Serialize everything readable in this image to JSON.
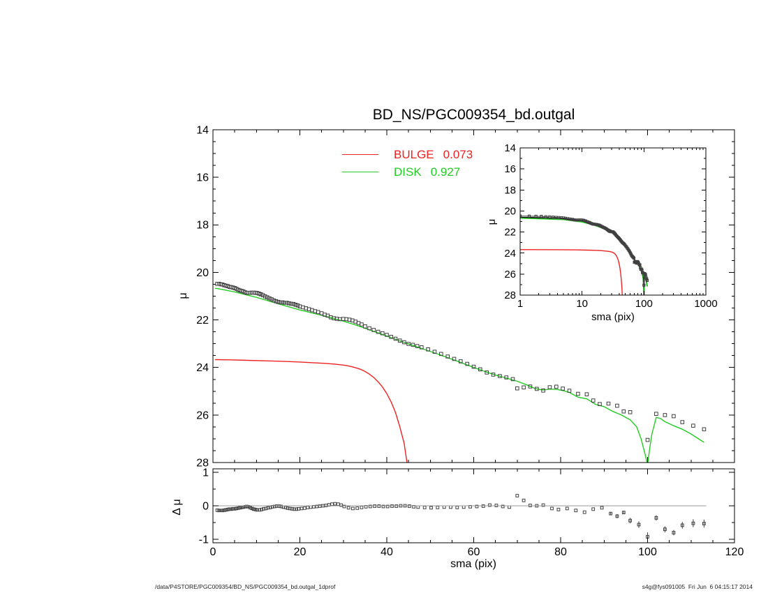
{
  "page": {
    "title": "BD_NS/PGC009354_bd.outgal",
    "footer_left": "/data/P4STORE/PGC009354/BD_NS/PGC009354_bd.outgal_1dprof",
    "footer_right": "s4g@fys091005  Fri Jun  6 04:15:17 2014"
  },
  "legend": {
    "entries": [
      {
        "label": "BULGE",
        "value": "0.073",
        "color": "#ee2222"
      },
      {
        "label": "DISK",
        "value": "0.927",
        "color": "#22cc22"
      }
    ]
  },
  "colors": {
    "bulge": "#ee2222",
    "disk": "#22cc22",
    "total": "#000000",
    "data": "#404040",
    "zero_line": "#999999",
    "axis": "#000000"
  },
  "chart_data": [
    {
      "id": "main",
      "type": "scatter+line",
      "title": "BD_NS/PGC009354_bd.outgal",
      "xlabel": "",
      "ylabel": "μ",
      "xscale": "linear",
      "xlim": [
        0,
        120
      ],
      "ylim_top": 14,
      "ylim_bottom": 28,
      "x_major_ticks": [
        0,
        20,
        40,
        60,
        80,
        100,
        120
      ],
      "x_minor_step": 5,
      "x_tick_labels": false,
      "y_major_ticks": [
        14,
        16,
        18,
        20,
        22,
        24,
        26,
        28
      ],
      "y_minor_step": 0.5,
      "y_tick_labels": true,
      "grid": false,
      "errorbars": false,
      "series_draw": [
        "bulge",
        "disk",
        "data"
      ],
      "legend_position": "top-center-left"
    },
    {
      "id": "inset",
      "type": "scatter+line",
      "title": "",
      "xlabel": "sma (pix)",
      "ylabel": "μ",
      "xscale": "log",
      "xlim": [
        1,
        1000
      ],
      "ylim_top": 14,
      "ylim_bottom": 28,
      "x_major_ticks": [
        1,
        10,
        100,
        1000
      ],
      "x_tick_labels": true,
      "y_major_ticks": [
        14,
        16,
        18,
        20,
        22,
        24,
        26,
        28
      ],
      "y_minor_step": 1,
      "y_tick_labels": true,
      "grid": false,
      "errorbars": true,
      "series_draw": [
        "bulge",
        "total",
        "disk",
        "dataline",
        "data"
      ]
    },
    {
      "id": "resid",
      "type": "scatter",
      "title": "",
      "xlabel": "sma (pix)",
      "ylabel": "Δ μ",
      "xscale": "linear",
      "xlim": [
        0,
        120
      ],
      "ylim_top": 1.1,
      "ylim_bottom": -1.1,
      "x_major_ticks": [
        0,
        20,
        40,
        60,
        80,
        100,
        120
      ],
      "x_minor_step": 5,
      "x_tick_labels": true,
      "y_major_ticks": [
        1,
        0,
        -1
      ],
      "y_minor_step": 0.5,
      "y_tick_labels": true,
      "zero_line": true,
      "zero_line_range": [
        0,
        113.5
      ],
      "grid": false,
      "errorbars": true,
      "series_draw": [
        "residuals"
      ]
    }
  ],
  "series": {
    "bulge": {
      "name": "BULGE model",
      "kind": "line",
      "color_key": "bulge",
      "points": [
        [
          0.5,
          23.67
        ],
        [
          4,
          23.68
        ],
        [
          8,
          23.7
        ],
        [
          12,
          23.72
        ],
        [
          16,
          23.74
        ],
        [
          20,
          23.77
        ],
        [
          23,
          23.8
        ],
        [
          26,
          23.83
        ],
        [
          28,
          23.86
        ],
        [
          30,
          23.9
        ],
        [
          31,
          23.93
        ],
        [
          32,
          23.97
        ],
        [
          33,
          24.02
        ],
        [
          34,
          24.08
        ],
        [
          35,
          24.17
        ],
        [
          36,
          24.28
        ],
        [
          37,
          24.42
        ],
        [
          38,
          24.6
        ],
        [
          39,
          24.82
        ],
        [
          40,
          25.1
        ],
        [
          41,
          25.45
        ],
        [
          42,
          25.9
        ],
        [
          43,
          26.5
        ],
        [
          44,
          27.2
        ],
        [
          44.8,
          28.2
        ]
      ]
    },
    "disk": {
      "name": "DISK model",
      "kind": "line",
      "color_key": "disk",
      "points": [
        [
          0.5,
          20.67
        ],
        [
          1,
          20.68
        ],
        [
          5,
          20.82
        ],
        [
          10,
          21.05
        ],
        [
          15,
          21.32
        ],
        [
          20,
          21.58
        ],
        [
          25,
          21.8
        ],
        [
          28,
          21.95
        ],
        [
          30,
          22.05
        ],
        [
          33,
          22.22
        ],
        [
          36,
          22.42
        ],
        [
          40,
          22.68
        ],
        [
          44,
          22.95
        ],
        [
          48,
          23.2
        ],
        [
          52,
          23.45
        ],
        [
          56,
          23.72
        ],
        [
          60,
          24.0
        ],
        [
          63,
          24.2
        ],
        [
          65,
          24.32
        ],
        [
          67,
          24.42
        ],
        [
          70,
          24.58
        ],
        [
          72,
          24.72
        ],
        [
          74,
          24.88
        ],
        [
          75,
          24.92
        ],
        [
          76,
          24.95
        ],
        [
          77.5,
          24.91
        ],
        [
          79,
          24.92
        ],
        [
          80.5,
          24.97
        ],
        [
          82,
          25.05
        ],
        [
          84,
          25.25
        ],
        [
          86,
          25.32
        ],
        [
          88,
          25.55
        ],
        [
          90,
          25.65
        ],
        [
          92,
          25.85
        ],
        [
          94,
          26.0
        ],
        [
          96,
          26.2
        ],
        [
          97.5,
          26.5
        ],
        [
          98.5,
          27.0
        ],
        [
          99.5,
          27.7
        ],
        [
          100,
          28.1
        ],
        [
          100.5,
          27.4
        ],
        [
          101,
          26.8
        ],
        [
          102,
          26.1
        ],
        [
          103,
          26.15
        ],
        [
          104,
          26.28
        ],
        [
          106,
          26.45
        ],
        [
          108,
          26.6
        ],
        [
          110,
          26.8
        ],
        [
          113,
          27.15
        ]
      ]
    },
    "total": {
      "name": "Total model (bulge+disk, flux sum)",
      "kind": "line",
      "color_key": "total",
      "computed": "flux_sum(bulge,disk)"
    },
    "data": {
      "name": "Observed profile",
      "kind": "scatter",
      "color_key": "data",
      "points": [
        [
          1.0,
          20.48
        ],
        [
          1.4,
          20.48
        ],
        [
          1.8,
          20.5
        ],
        [
          2.2,
          20.51
        ],
        [
          2.6,
          20.54
        ],
        [
          3.0,
          20.56
        ],
        [
          3.4,
          20.58
        ],
        [
          3.8,
          20.61
        ],
        [
          4.2,
          20.62
        ],
        [
          4.6,
          20.64
        ],
        [
          5.0,
          20.66
        ],
        [
          5.4,
          20.69
        ],
        [
          5.8,
          20.73
        ],
        [
          6.2,
          20.76
        ],
        [
          6.6,
          20.78
        ],
        [
          7.0,
          20.8
        ],
        [
          7.4,
          20.84
        ],
        [
          7.8,
          20.86
        ],
        [
          8.2,
          20.86
        ],
        [
          8.6,
          20.86
        ],
        [
          9.0,
          20.85
        ],
        [
          9.4,
          20.85
        ],
        [
          9.8,
          20.86
        ],
        [
          10.2,
          20.87
        ],
        [
          10.6,
          20.89
        ],
        [
          11.0,
          20.92
        ],
        [
          11.5,
          20.96
        ],
        [
          12.0,
          21.01
        ],
        [
          12.5,
          21.05
        ],
        [
          13.0,
          21.09
        ],
        [
          13.5,
          21.13
        ],
        [
          14.0,
          21.18
        ],
        [
          14.5,
          21.21
        ],
        [
          15.0,
          21.24
        ],
        [
          15.5,
          21.26
        ],
        [
          16.0,
          21.26
        ],
        [
          16.5,
          21.28
        ],
        [
          17.0,
          21.28
        ],
        [
          17.5,
          21.3
        ],
        [
          18.0,
          21.32
        ],
        [
          18.5,
          21.33
        ],
        [
          19.0,
          21.36
        ],
        [
          19.5,
          21.39
        ],
        [
          20.0,
          21.43
        ],
        [
          20.7,
          21.47
        ],
        [
          21.4,
          21.51
        ],
        [
          22.1,
          21.55
        ],
        [
          22.8,
          21.59
        ],
        [
          23.5,
          21.63
        ],
        [
          24.2,
          21.67
        ],
        [
          25.0,
          21.72
        ],
        [
          25.7,
          21.78
        ],
        [
          26.4,
          21.82
        ],
        [
          27.1,
          21.89
        ],
        [
          27.8,
          21.93
        ],
        [
          28.5,
          21.95
        ],
        [
          29.2,
          21.97
        ],
        [
          30.0,
          21.96
        ],
        [
          30.7,
          21.97
        ],
        [
          31.4,
          21.99
        ],
        [
          32.1,
          22.02
        ],
        [
          32.8,
          22.07
        ],
        [
          33.5,
          22.13
        ],
        [
          34.2,
          22.19
        ],
        [
          35.0,
          22.27
        ],
        [
          36.0,
          22.35
        ],
        [
          37.0,
          22.42
        ],
        [
          38.0,
          22.5
        ],
        [
          39.0,
          22.56
        ],
        [
          40.0,
          22.63
        ],
        [
          41.0,
          22.71
        ],
        [
          42.0,
          22.79
        ],
        [
          43.0,
          22.87
        ],
        [
          44.0,
          22.94
        ],
        [
          45.0,
          23.01
        ],
        [
          46.0,
          23.05
        ],
        [
          47.0,
          23.1
        ],
        [
          48.0,
          23.15
        ],
        [
          49.5,
          23.24
        ],
        [
          51.0,
          23.34
        ],
        [
          52.5,
          23.43
        ],
        [
          54.0,
          23.54
        ],
        [
          55.5,
          23.64
        ],
        [
          57.0,
          23.74
        ],
        [
          58.5,
          23.85
        ],
        [
          60.0,
          23.97
        ],
        [
          61.5,
          24.08
        ],
        [
          63.0,
          24.21
        ],
        [
          64.5,
          24.3
        ],
        [
          66.0,
          24.36
        ],
        [
          67.5,
          24.42
        ],
        [
          69.0,
          24.49
        ],
        [
          70.0,
          24.88
        ],
        [
          71.5,
          24.84
        ],
        [
          73.0,
          24.8
        ],
        [
          74.5,
          24.9
        ],
        [
          76.0,
          24.97
        ],
        [
          77.5,
          24.83
        ],
        [
          79.0,
          24.81
        ],
        [
          80.5,
          24.89
        ],
        [
          82.0,
          24.98
        ],
        [
          84.0,
          25.11
        ],
        [
          86.0,
          25.13
        ],
        [
          87.5,
          25.39
        ],
        [
          89.0,
          25.54
        ],
        [
          91.0,
          25.52,
          0.08
        ],
        [
          93.0,
          25.61,
          0.09
        ],
        [
          94.5,
          25.85,
          0.08
        ],
        [
          96.0,
          25.88,
          0.1
        ],
        [
          100.0,
          27.05,
          0.2
        ],
        [
          102.0,
          25.95,
          0.12
        ],
        [
          104.0,
          26.0,
          0.12
        ],
        [
          106.0,
          26.05,
          0.12
        ],
        [
          108.0,
          26.3,
          0.13
        ],
        [
          110.5,
          26.45,
          0.15
        ],
        [
          113.0,
          26.6,
          0.15
        ]
      ]
    },
    "residuals": {
      "name": "Data - model residuals",
      "kind": "scatter",
      "color_key": "data",
      "points": [
        [
          1.0,
          -0.13
        ],
        [
          1.4,
          -0.14
        ],
        [
          1.8,
          -0.14
        ],
        [
          2.2,
          -0.14
        ],
        [
          2.6,
          -0.13
        ],
        [
          3.0,
          -0.12
        ],
        [
          3.4,
          -0.11
        ],
        [
          3.8,
          -0.1
        ],
        [
          4.2,
          -0.1
        ],
        [
          4.6,
          -0.09
        ],
        [
          5.0,
          -0.09
        ],
        [
          5.4,
          -0.08
        ],
        [
          5.8,
          -0.07
        ],
        [
          6.2,
          -0.06
        ],
        [
          6.6,
          -0.05
        ],
        [
          7.0,
          -0.04
        ],
        [
          7.4,
          -0.03
        ],
        [
          7.8,
          -0.02
        ],
        [
          8.2,
          -0.03
        ],
        [
          8.6,
          -0.06
        ],
        [
          9.0,
          -0.08
        ],
        [
          9.4,
          -0.1
        ],
        [
          9.8,
          -0.11
        ],
        [
          10.2,
          -0.12
        ],
        [
          10.7,
          -0.12
        ],
        [
          11.2,
          -0.11
        ],
        [
          11.7,
          -0.09
        ],
        [
          12.2,
          -0.08
        ],
        [
          12.7,
          -0.06
        ],
        [
          13.2,
          -0.05
        ],
        [
          13.7,
          -0.03
        ],
        [
          14.2,
          -0.02
        ],
        [
          14.7,
          -0.01
        ],
        [
          15.2,
          -0.01
        ],
        [
          15.7,
          -0.02
        ],
        [
          16.2,
          -0.04
        ],
        [
          16.7,
          -0.05
        ],
        [
          17.2,
          -0.07
        ],
        [
          17.7,
          -0.08
        ],
        [
          18.2,
          -0.09
        ],
        [
          18.7,
          -0.1
        ],
        [
          19.2,
          -0.1
        ],
        [
          19.7,
          -0.09
        ],
        [
          20.4,
          -0.08
        ],
        [
          21.1,
          -0.07
        ],
        [
          21.8,
          -0.05
        ],
        [
          22.5,
          -0.04
        ],
        [
          23.2,
          -0.03
        ],
        [
          23.9,
          -0.02
        ],
        [
          24.6,
          -0.01
        ],
        [
          25.3,
          0
        ],
        [
          26.0,
          0.01
        ],
        [
          26.7,
          0.03
        ],
        [
          27.4,
          0.05
        ],
        [
          28.1,
          0.06
        ],
        [
          28.8,
          0.05
        ],
        [
          29.5,
          0.02
        ],
        [
          30.2,
          -0.02
        ],
        [
          31.2,
          -0.06
        ],
        [
          32.2,
          -0.08
        ],
        [
          33.2,
          -0.07
        ],
        [
          34.2,
          -0.05
        ],
        [
          35.2,
          -0.03
        ],
        [
          36.2,
          -0.02
        ],
        [
          37.2,
          -0.01
        ],
        [
          38.2,
          -0.01
        ],
        [
          39.2,
          -0.02
        ],
        [
          40.2,
          -0.02
        ],
        [
          41.2,
          -0.01
        ],
        [
          42.2,
          -0.01
        ],
        [
          43.2,
          0
        ],
        [
          44.2,
          0
        ],
        [
          45.2,
          -0.01
        ],
        [
          46.2,
          -0.03
        ],
        [
          47.2,
          -0.04
        ],
        [
          48.7,
          -0.05
        ],
        [
          50.2,
          -0.06
        ],
        [
          51.7,
          -0.05
        ],
        [
          53.2,
          -0.04
        ],
        [
          54.7,
          -0.04
        ],
        [
          56.2,
          -0.05
        ],
        [
          57.7,
          -0.04
        ],
        [
          59.2,
          -0.03
        ],
        [
          60.7,
          -0.02
        ],
        [
          62.2,
          -0.01
        ],
        [
          63.7,
          0.02
        ],
        [
          65.2,
          0.01
        ],
        [
          66.7,
          -0.02
        ],
        [
          68.2,
          -0.04
        ],
        [
          70.0,
          0.3
        ],
        [
          71.5,
          0.16
        ],
        [
          73.0,
          0.01
        ],
        [
          74.5,
          0
        ],
        [
          76.0,
          0.02
        ],
        [
          78.0,
          -0.08
        ],
        [
          79.5,
          -0.11
        ],
        [
          81.5,
          -0.08
        ],
        [
          83.5,
          -0.14
        ],
        [
          85.5,
          -0.19
        ],
        [
          87.5,
          -0.1
        ],
        [
          89.5,
          -0.06
        ],
        [
          91.5,
          -0.23,
          0.05
        ],
        [
          93.0,
          -0.31,
          0.06
        ],
        [
          94.5,
          -0.2,
          0.05
        ],
        [
          96.0,
          -0.44,
          0.08
        ],
        [
          98.0,
          -0.56,
          0.1
        ],
        [
          100.0,
          -0.92,
          0.13
        ],
        [
          102.0,
          -0.36,
          0.08
        ],
        [
          104.0,
          -0.7,
          0.09
        ],
        [
          106.0,
          -0.8,
          0.08
        ],
        [
          108.0,
          -0.58,
          0.1
        ],
        [
          110.5,
          -0.52,
          0.12
        ],
        [
          113.0,
          -0.53,
          0.12
        ]
      ]
    }
  }
}
